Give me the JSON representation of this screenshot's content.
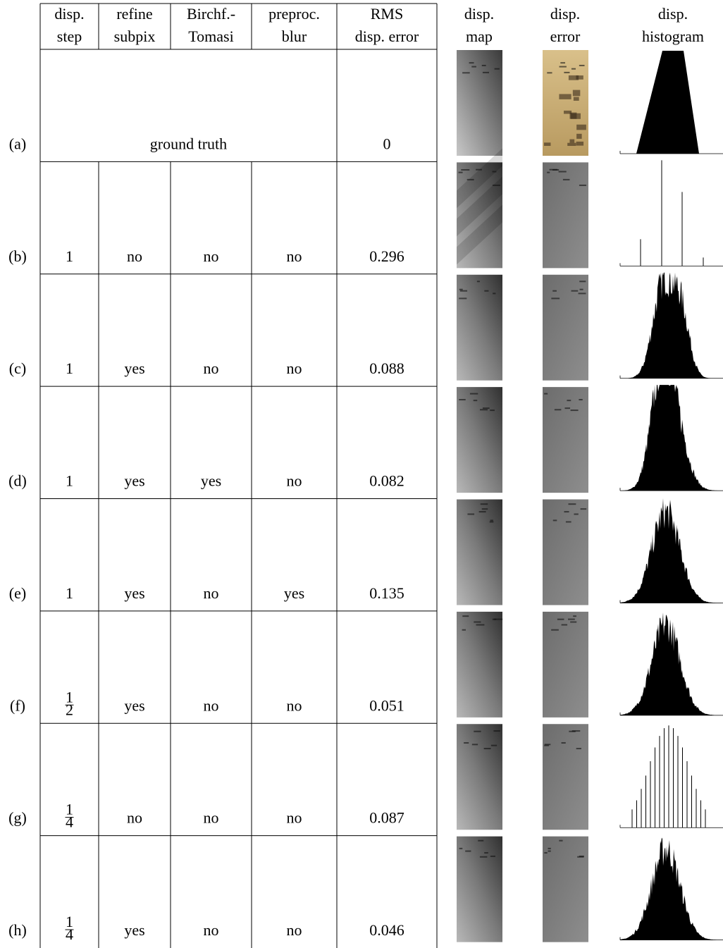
{
  "header": {
    "columns": [
      [
        "disp.",
        "step"
      ],
      [
        "refine",
        "subpix"
      ],
      [
        "Birchf.-",
        "Tomasi"
      ],
      [
        "preproc.",
        "blur"
      ],
      [
        "RMS",
        "disp. error"
      ]
    ],
    "images": [
      [
        "disp.",
        "map"
      ],
      [
        "disp.",
        "error"
      ],
      [
        "disp.",
        "histogram"
      ]
    ]
  },
  "rows": [
    {
      "label": "(a)",
      "ground_truth": "ground truth",
      "rms": "0"
    },
    {
      "label": "(b)",
      "step": "1",
      "subpix": "no",
      "birchfield": "no",
      "blur": "no",
      "rms": "0.296"
    },
    {
      "label": "(c)",
      "step": "1",
      "subpix": "yes",
      "birchfield": "no",
      "blur": "no",
      "rms": "0.088"
    },
    {
      "label": "(d)",
      "step": "1",
      "subpix": "yes",
      "birchfield": "yes",
      "blur": "no",
      "rms": "0.082"
    },
    {
      "label": "(e)",
      "step": "1",
      "subpix": "yes",
      "birchfield": "no",
      "blur": "yes",
      "rms": "0.135"
    },
    {
      "label": "(f)",
      "step": {
        "numerator": "1",
        "denominator": "2"
      },
      "subpix": "yes",
      "birchfield": "no",
      "blur": "no",
      "rms": "0.051"
    },
    {
      "label": "(g)",
      "step": {
        "numerator": "1",
        "denominator": "4"
      },
      "subpix": "no",
      "birchfield": "no",
      "blur": "no",
      "rms": "0.087"
    },
    {
      "label": "(h)",
      "step": {
        "numerator": "1",
        "denominator": "4"
      },
      "subpix": "yes",
      "birchfield": "no",
      "blur": "no",
      "rms": "0.046"
    }
  ]
}
